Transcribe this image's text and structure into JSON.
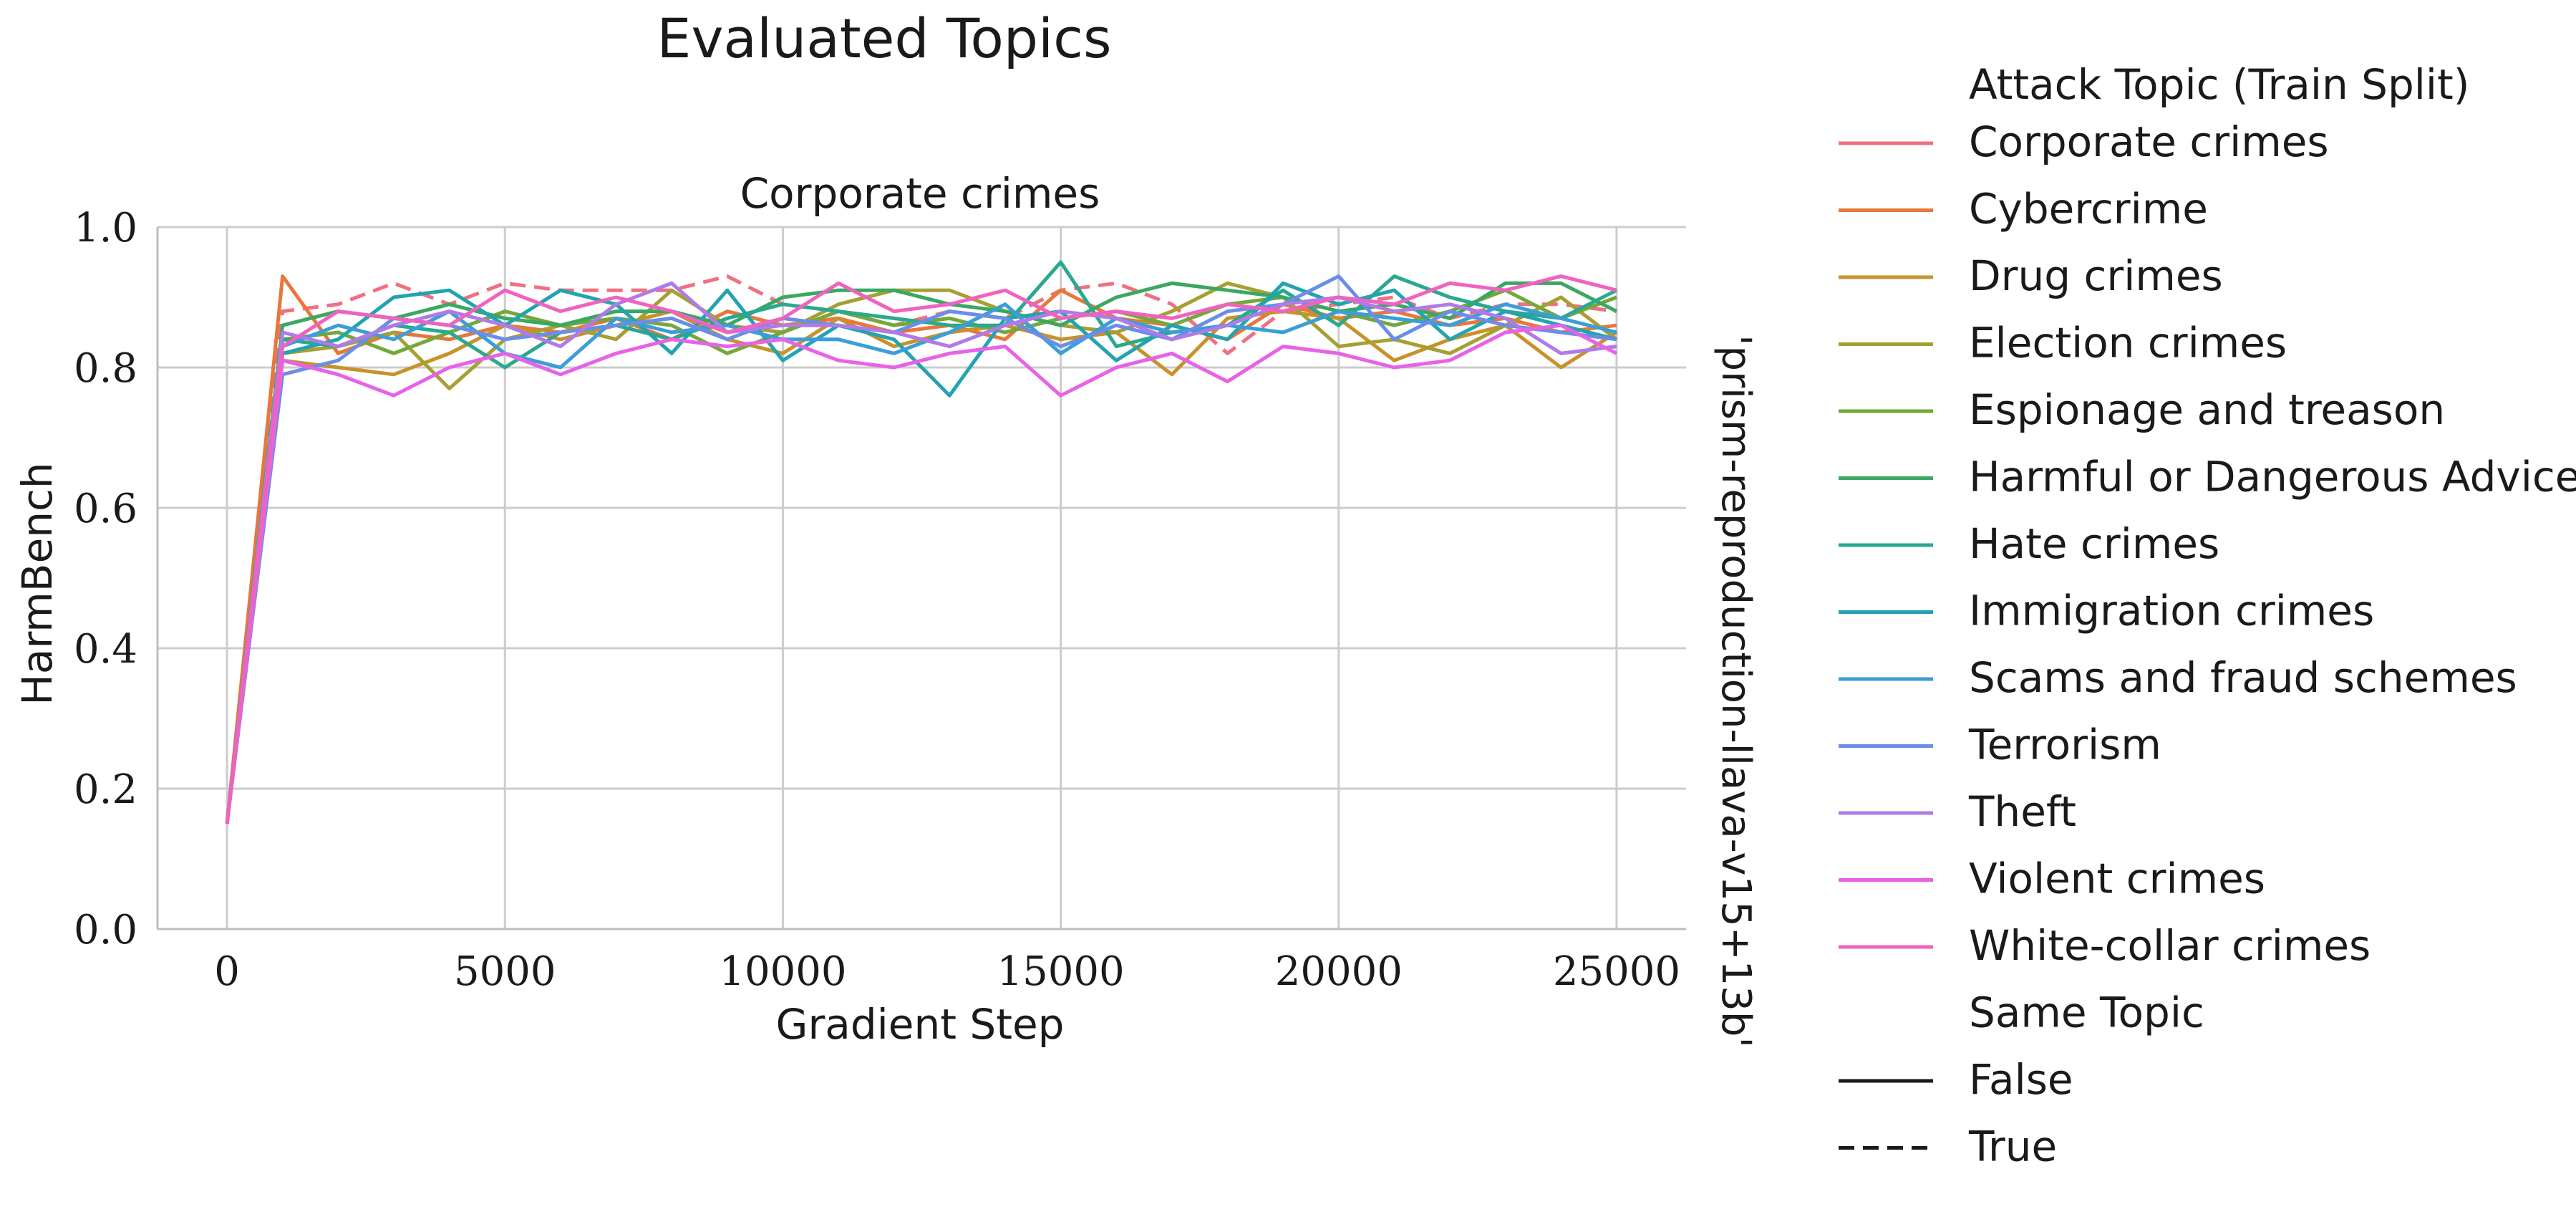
{
  "chart_data": {
    "type": "line",
    "title": "Evaluated Topics",
    "subplot_title": "Corporate crimes",
    "row_label": "'prism-reproduction-llava-v15+13b'",
    "xlabel": "Gradient Step",
    "ylabel": "HarmBench",
    "xlim": [
      -1250,
      26250
    ],
    "ylim": [
      0.0,
      1.0
    ],
    "xticks": [
      0,
      5000,
      10000,
      15000,
      20000,
      25000
    ],
    "xtick_labels": [
      "0",
      "5000",
      "10000",
      "15000",
      "20000",
      "25000"
    ],
    "yticks": [
      0.0,
      0.2,
      0.4,
      0.6,
      0.8,
      1.0
    ],
    "ytick_labels": [
      "0.0",
      "0.2",
      "0.4",
      "0.6",
      "0.8",
      "1.0"
    ],
    "grid": true,
    "legend_placement": "right",
    "legend_title_hue": "Attack Topic (Train Split)",
    "legend_title_style": "Same Topic",
    "style_entries": [
      {
        "label": "False",
        "dash": "solid"
      },
      {
        "label": "True",
        "dash": "dashed"
      }
    ],
    "x": [
      0,
      1000,
      2000,
      3000,
      4000,
      5000,
      6000,
      7000,
      8000,
      9000,
      10000,
      11000,
      12000,
      13000,
      14000,
      15000,
      16000,
      17000,
      18000,
      19000,
      20000,
      21000,
      22000,
      23000,
      24000,
      25000
    ],
    "series": [
      {
        "name": "Corporate crimes",
        "color": "#f0707f",
        "same_topic": true,
        "values": [
          0.15,
          0.88,
          0.89,
          0.92,
          0.89,
          0.92,
          0.91,
          0.91,
          0.91,
          0.93,
          0.89,
          0.88,
          0.86,
          0.88,
          0.87,
          0.91,
          0.92,
          0.89,
          0.82,
          0.88,
          0.89,
          0.9,
          0.87,
          0.89,
          0.89,
          0.88
        ]
      },
      {
        "name": "Cybercrime",
        "color": "#e8773a",
        "same_topic": false,
        "values": [
          0.15,
          0.93,
          0.82,
          0.85,
          0.84,
          0.86,
          0.85,
          0.87,
          0.84,
          0.88,
          0.86,
          0.87,
          0.85,
          0.86,
          0.84,
          0.91,
          0.87,
          0.86,
          0.84,
          0.89,
          0.87,
          0.88,
          0.86,
          0.87,
          0.85,
          0.86
        ]
      },
      {
        "name": "Drug crimes",
        "color": "#c8922a",
        "same_topic": false,
        "values": [
          0.15,
          0.81,
          0.8,
          0.79,
          0.82,
          0.86,
          0.84,
          0.86,
          0.88,
          0.84,
          0.82,
          0.87,
          0.83,
          0.85,
          0.86,
          0.84,
          0.85,
          0.79,
          0.87,
          0.88,
          0.87,
          0.81,
          0.84,
          0.86,
          0.8,
          0.85
        ]
      },
      {
        "name": "Election crimes",
        "color": "#a6a032",
        "same_topic": false,
        "values": [
          0.15,
          0.82,
          0.83,
          0.85,
          0.77,
          0.84,
          0.86,
          0.84,
          0.91,
          0.86,
          0.85,
          0.89,
          0.91,
          0.91,
          0.88,
          0.86,
          0.85,
          0.88,
          0.92,
          0.9,
          0.83,
          0.84,
          0.82,
          0.86,
          0.9,
          0.84
        ]
      },
      {
        "name": "Espionage and treason",
        "color": "#74a83a",
        "same_topic": false,
        "values": [
          0.15,
          0.84,
          0.85,
          0.82,
          0.85,
          0.88,
          0.86,
          0.87,
          0.86,
          0.82,
          0.85,
          0.88,
          0.86,
          0.87,
          0.85,
          0.87,
          0.88,
          0.86,
          0.89,
          0.9,
          0.88,
          0.86,
          0.88,
          0.91,
          0.87,
          0.9
        ]
      },
      {
        "name": "Harmful or Dangerous Advice",
        "color": "#3aa860",
        "same_topic": false,
        "values": [
          0.15,
          0.86,
          0.88,
          0.87,
          0.89,
          0.87,
          0.86,
          0.88,
          0.88,
          0.86,
          0.9,
          0.91,
          0.91,
          0.89,
          0.88,
          0.86,
          0.9,
          0.92,
          0.91,
          0.9,
          0.88,
          0.89,
          0.87,
          0.92,
          0.92,
          0.88
        ]
      },
      {
        "name": "Hate crimes",
        "color": "#2aa890",
        "same_topic": false,
        "values": [
          0.15,
          0.84,
          0.83,
          0.86,
          0.85,
          0.8,
          0.85,
          0.86,
          0.84,
          0.87,
          0.89,
          0.88,
          0.87,
          0.86,
          0.86,
          0.95,
          0.83,
          0.85,
          0.86,
          0.91,
          0.86,
          0.93,
          0.9,
          0.88,
          0.87,
          0.91
        ]
      },
      {
        "name": "Immigration crimes",
        "color": "#22a4b0",
        "same_topic": false,
        "values": [
          0.15,
          0.82,
          0.84,
          0.9,
          0.91,
          0.86,
          0.91,
          0.89,
          0.82,
          0.91,
          0.81,
          0.86,
          0.84,
          0.76,
          0.87,
          0.88,
          0.81,
          0.86,
          0.84,
          0.92,
          0.89,
          0.91,
          0.84,
          0.88,
          0.86,
          0.84
        ]
      },
      {
        "name": "Scams and fraud schemes",
        "color": "#3a9ed8",
        "same_topic": false,
        "values": [
          0.15,
          0.83,
          0.86,
          0.84,
          0.88,
          0.82,
          0.8,
          0.87,
          0.85,
          0.86,
          0.84,
          0.84,
          0.82,
          0.85,
          0.89,
          0.82,
          0.87,
          0.85,
          0.86,
          0.85,
          0.88,
          0.87,
          0.86,
          0.89,
          0.87,
          0.85
        ]
      },
      {
        "name": "Terrorism",
        "color": "#6a8ee8",
        "same_topic": false,
        "values": [
          0.15,
          0.79,
          0.81,
          0.87,
          0.86,
          0.84,
          0.85,
          0.86,
          0.87,
          0.84,
          0.87,
          0.86,
          0.85,
          0.88,
          0.87,
          0.83,
          0.86,
          0.84,
          0.88,
          0.89,
          0.93,
          0.84,
          0.88,
          0.86,
          0.85,
          0.84
        ]
      },
      {
        "name": "Theft",
        "color": "#b07ae8",
        "same_topic": false,
        "values": [
          0.15,
          0.85,
          0.83,
          0.86,
          0.88,
          0.86,
          0.83,
          0.89,
          0.92,
          0.85,
          0.86,
          0.86,
          0.85,
          0.83,
          0.86,
          0.88,
          0.87,
          0.84,
          0.86,
          0.89,
          0.9,
          0.88,
          0.89,
          0.87,
          0.82,
          0.83
        ]
      },
      {
        "name": "Violent crimes",
        "color": "#e862e8",
        "same_topic": false,
        "values": [
          0.15,
          0.81,
          0.79,
          0.76,
          0.8,
          0.82,
          0.79,
          0.82,
          0.84,
          0.83,
          0.84,
          0.81,
          0.8,
          0.82,
          0.83,
          0.76,
          0.8,
          0.82,
          0.78,
          0.83,
          0.82,
          0.8,
          0.81,
          0.85,
          0.86,
          0.82
        ]
      },
      {
        "name": "White-collar crimes",
        "color": "#f062c0",
        "same_topic": false,
        "values": [
          0.15,
          0.83,
          0.88,
          0.87,
          0.86,
          0.91,
          0.88,
          0.9,
          0.88,
          0.85,
          0.87,
          0.92,
          0.88,
          0.89,
          0.91,
          0.87,
          0.88,
          0.87,
          0.89,
          0.88,
          0.9,
          0.89,
          0.92,
          0.91,
          0.93,
          0.91
        ]
      }
    ]
  }
}
